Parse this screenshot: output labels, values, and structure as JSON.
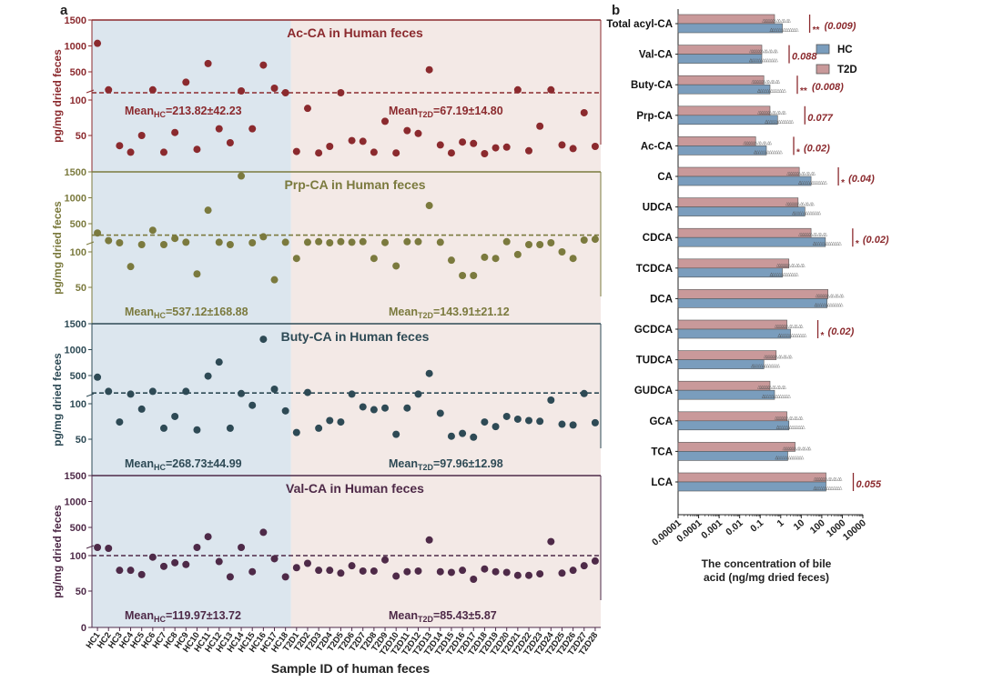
{
  "panel_labels": {
    "a": "a",
    "b": "b"
  },
  "chart_data": [
    {
      "type": "scatter",
      "panel": "a",
      "xlabel": "Sample ID of human feces",
      "samples": [
        "HC1",
        "HC2",
        "HC3",
        "HC4",
        "HC5",
        "HC6",
        "HC7",
        "HC8",
        "HC9",
        "HC10",
        "HC11",
        "HC12",
        "HC13",
        "HC14",
        "HC15",
        "HC16",
        "HC17",
        "HC18",
        "T2D1",
        "T2D2",
        "T2D3",
        "T2D4",
        "T2D5",
        "T2D6",
        "T2D7",
        "T2D8",
        "T2D9",
        "T2D10",
        "T2D11",
        "T2D12",
        "T2D13",
        "T2D14",
        "T2D15",
        "T2D16",
        "T2D17",
        "T2D18",
        "T2D19",
        "T2D20",
        "T2D21",
        "T2D22",
        "T2D23",
        "T2D24",
        "T2D25",
        "T2D26",
        "T2D27",
        "T2D28"
      ],
      "group_split": {
        "HC": 18,
        "T2D": 28
      },
      "background_colors": {
        "HC": "#dce6ee",
        "T2D": "#f3e9e6"
      },
      "y_ticks": [
        "0",
        "50",
        "100",
        "500",
        "1000",
        "1500"
      ],
      "ylabel": "pg/mg dried feces",
      "subplots": [
        {
          "title": "Ac-CA in Human feces",
          "color": "#8b2a2e",
          "mean_hc_label": "Mean",
          "mean_hc_sub": "HC",
          "mean_hc_value": "=213.82±42.23",
          "mean_t2d_label": "Mean",
          "mean_t2d_sub": "T2D",
          "mean_t2d_value": "=67.19±14.80",
          "dashed_line": 140,
          "values": [
            1050,
            170,
            36,
            27,
            50,
            170,
            27,
            53,
            310,
            31,
            660,
            57,
            40,
            150,
            57,
            630,
            200,
            140,
            28,
            85,
            26,
            35,
            140,
            43,
            42,
            27,
            66,
            26,
            55,
            52,
            540,
            37,
            26,
            41,
            39,
            25,
            33,
            34,
            170,
            29,
            60,
            170,
            37,
            32,
            78,
            35
          ]
        },
        {
          "title": "Prp-CA in Human feces",
          "color": "#7b7a3e",
          "mean_hc_label": "Mean",
          "mean_hc_sub": "HC",
          "mean_hc_value": "=537.12±168.88",
          "mean_t2d_label": "Mean",
          "mean_t2d_sub": "T2D",
          "mean_t2d_value": "=143.91±21.12",
          "dashed_line": 290,
          "values": [
            330,
            190,
            150,
            75,
            140,
            380,
            140,
            230,
            160,
            65,
            760,
            160,
            140,
            1420,
            150,
            260,
            58,
            160,
            88,
            160,
            170,
            150,
            170,
            160,
            170,
            88,
            155,
            76,
            170,
            170,
            850,
            160,
            85,
            63,
            63,
            90,
            88,
            170,
            95,
            140,
            140,
            150,
            100,
            88,
            200,
            215
          ]
        },
        {
          "title": "Buty-CA in Human feces",
          "color": "#2e4a55",
          "mean_hc_label": "Mean",
          "mean_hc_sub": "HC",
          "mean_hc_value": "=268.73±44.99",
          "mean_t2d_label": "Mean",
          "mean_t2d_sub": "T2D",
          "mean_t2d_value": "=97.96±12.98",
          "dashed_line": 180,
          "values": [
            470,
            210,
            70,
            160,
            90,
            210,
            62,
            78,
            210,
            60,
            490,
            760,
            62,
            170,
            97,
            1200,
            250,
            87,
            57,
            190,
            62,
            72,
            70,
            160,
            94,
            89,
            92,
            55,
            92,
            160,
            540,
            83,
            53,
            56,
            52,
            70,
            64,
            78,
            74,
            72,
            71,
            120,
            67,
            66,
            170,
            69
          ]
        },
        {
          "title": "Val-CA in Human feces",
          "color": "#4e2a48",
          "mean_hc_label": "Mean",
          "mean_hc_sub": "HC",
          "mean_hc_value": "=119.97±13.72",
          "mean_t2d_label": "Mean",
          "mean_t2d_sub": "T2D",
          "mean_t2d_value": "=85.43±5.87",
          "dashed_line": 100,
          "values": [
            145,
            140,
            75,
            75,
            69,
            97,
            81,
            87,
            84,
            145,
            330,
            89,
            66,
            145,
            73,
            410,
            94,
            66,
            79,
            86,
            75,
            75,
            71,
            82,
            74,
            74,
            92,
            67,
            73,
            74,
            270,
            73,
            72,
            75,
            63,
            77,
            73,
            72,
            68,
            68,
            70,
            240,
            71,
            75,
            82,
            90
          ]
        }
      ]
    },
    {
      "type": "bar",
      "panel": "b",
      "orientation": "horizontal",
      "xscale": "log",
      "xlim": [
        1e-05,
        10000
      ],
      "x_ticks": [
        "0.00001",
        "0.0001",
        "0.001",
        "0.01",
        "0.1",
        "1",
        "10",
        "100",
        "1000",
        "10000"
      ],
      "xlabel_line1": "The concentration of bile",
      "xlabel_line2": "acid (ng/mg dried feces)",
      "legend": [
        {
          "name": "HC",
          "color": "#7a9dbd"
        },
        {
          "name": "T2D",
          "color": "#c9999a"
        }
      ],
      "legend_position": "top-right",
      "annotation_color": "#8b2a2e",
      "categories": [
        "Total acyl-CA",
        "Val-CA",
        "Buty-CA",
        "Prp-CA",
        "Ac-CA",
        "CA",
        "UDCA",
        "CDCA",
        "TCDCA",
        "DCA",
        "GCDCA",
        "TUDCA",
        "GUDCA",
        "GCA",
        "TCA",
        "LCA"
      ],
      "series": [
        {
          "name": "T2D",
          "values": [
            0.5,
            0.12,
            0.15,
            0.3,
            0.06,
            8,
            7,
            30,
            2.5,
            200,
            2,
            0.6,
            0.3,
            2,
            5,
            160
          ]
        },
        {
          "name": "HC",
          "values": [
            1.2,
            0.12,
            0.3,
            0.7,
            0.2,
            30,
            15,
            150,
            1.2,
            180,
            3,
            0.15,
            0.5,
            2.5,
            2.2,
            160
          ]
        }
      ],
      "annotations": [
        {
          "category": "Total acyl-CA",
          "stars": "**",
          "text": "(0.009)"
        },
        {
          "category": "Val-CA",
          "stars": "",
          "text": "0.088"
        },
        {
          "category": "Buty-CA",
          "stars": "**",
          "text": "(0.008)"
        },
        {
          "category": "Prp-CA",
          "stars": "",
          "text": "0.077"
        },
        {
          "category": "Ac-CA",
          "stars": "*",
          "text": "(0.02)"
        },
        {
          "category": "CA",
          "stars": "*",
          "text": "(0.04)"
        },
        {
          "category": "CDCA",
          "stars": "*",
          "text": "(0.02)"
        },
        {
          "category": "GCDCA",
          "stars": "*",
          "text": "(0.02)"
        },
        {
          "category": "LCA",
          "stars": "",
          "text": "0.055"
        }
      ]
    }
  ]
}
